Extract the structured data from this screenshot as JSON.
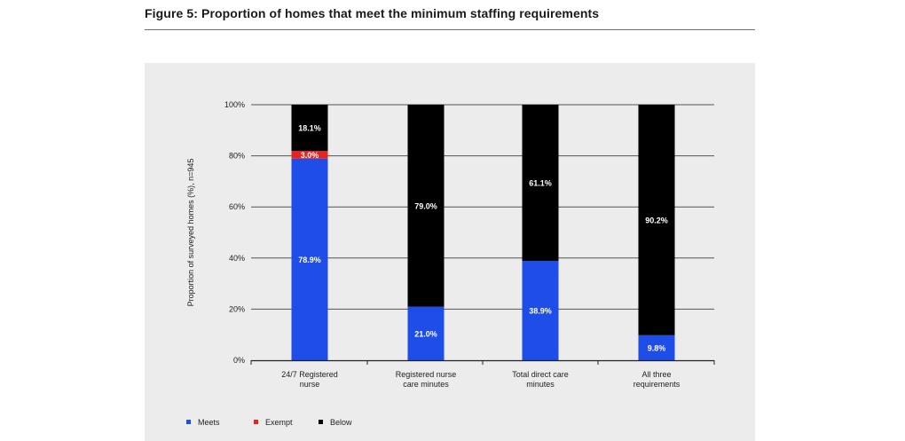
{
  "figure": {
    "title": "Figure 5: Proportion of homes that meet the minimum staffing requirements"
  },
  "colors": {
    "meets": "#1f4de8",
    "exempt": "#e8231f",
    "below": "#000000",
    "panel_bg": "#ececec",
    "grid": "#555555"
  },
  "chart_data": {
    "type": "bar",
    "stacked": true,
    "title": "",
    "xlabel": "",
    "ylabel": "Proportion of surveyed homes (%), n=945",
    "ylim": [
      0,
      100
    ],
    "yticks": [
      "0%",
      "20%",
      "40%",
      "60%",
      "80%",
      "100%"
    ],
    "grid": true,
    "legend_position": "bottom-left",
    "categories": [
      [
        "24/7 Registered",
        "nurse"
      ],
      [
        "Registered nurse",
        "care minutes"
      ],
      [
        "Total direct care",
        "minutes"
      ],
      [
        "All three",
        "requirements"
      ]
    ],
    "series": [
      {
        "name": "Meets",
        "color": "#1f4de8",
        "values": [
          78.9,
          21.0,
          38.9,
          9.8
        ],
        "labels": [
          "78.9%",
          "21.0%",
          "38.9%",
          "9.8%"
        ]
      },
      {
        "name": "Exempt",
        "color": "#e8231f",
        "values": [
          3.0,
          0,
          0,
          0
        ],
        "labels": [
          "3.0%",
          "",
          "",
          ""
        ]
      },
      {
        "name": "Below",
        "color": "#000000",
        "values": [
          18.1,
          79.0,
          61.1,
          90.2
        ],
        "labels": [
          "18.1%",
          "79.0%",
          "61.1%",
          "90.2%"
        ]
      }
    ]
  }
}
